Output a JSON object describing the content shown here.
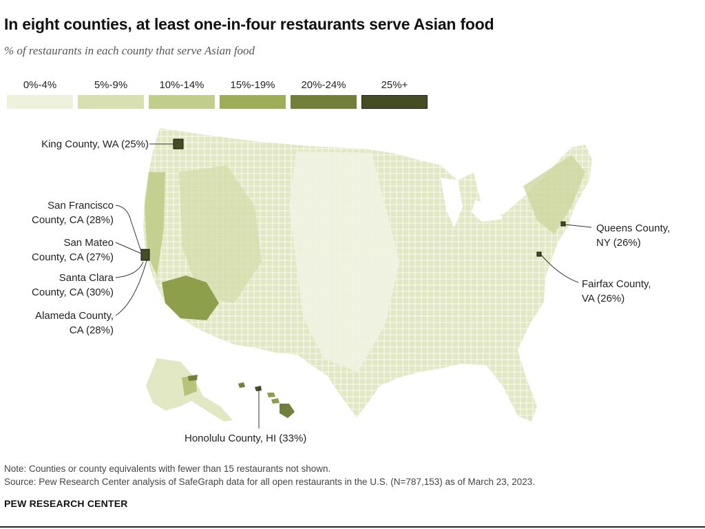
{
  "title": "In eight counties, at least one-in-four restaurants serve Asian food",
  "subtitle": "% of restaurants in each county that serve Asian food",
  "legend": [
    {
      "label": "0%-4%",
      "color": "#eef1dc"
    },
    {
      "label": "5%-9%",
      "color": "#d8e0b2"
    },
    {
      "label": "10%-14%",
      "color": "#c2ce8b"
    },
    {
      "label": "15%-19%",
      "color": "#9dae58"
    },
    {
      "label": "20%-24%",
      "color": "#707f3a"
    },
    {
      "label": "25%+",
      "color": "#454d22"
    }
  ],
  "callouts": {
    "king": "King County, WA (25%)",
    "sf_line1": "San Francisco",
    "sf_line2": "County, CA (28%)",
    "sm_line1": "San Mateo",
    "sm_line2": "County, CA (27%)",
    "sc_line1": "Santa Clara",
    "sc_line2": "County, CA (30%)",
    "al_line1": "Alameda County,",
    "al_line2": "CA (28%)",
    "queens_line1": "Queens County,",
    "queens_line2": "NY (26%)",
    "fairfax_line1": "Fairfax County,",
    "fairfax_line2": "VA (26%)",
    "honolulu": "Honolulu County, HI (33%)"
  },
  "note": "Note: Counties or county equivalents with fewer than 15 restaurants not shown.",
  "source": "Source: Pew Research Center analysis of SafeGraph data for all open restaurants in the U.S. (N=787,153) as of March 23, 2023.",
  "brand": "PEW RESEARCH CENTER"
}
